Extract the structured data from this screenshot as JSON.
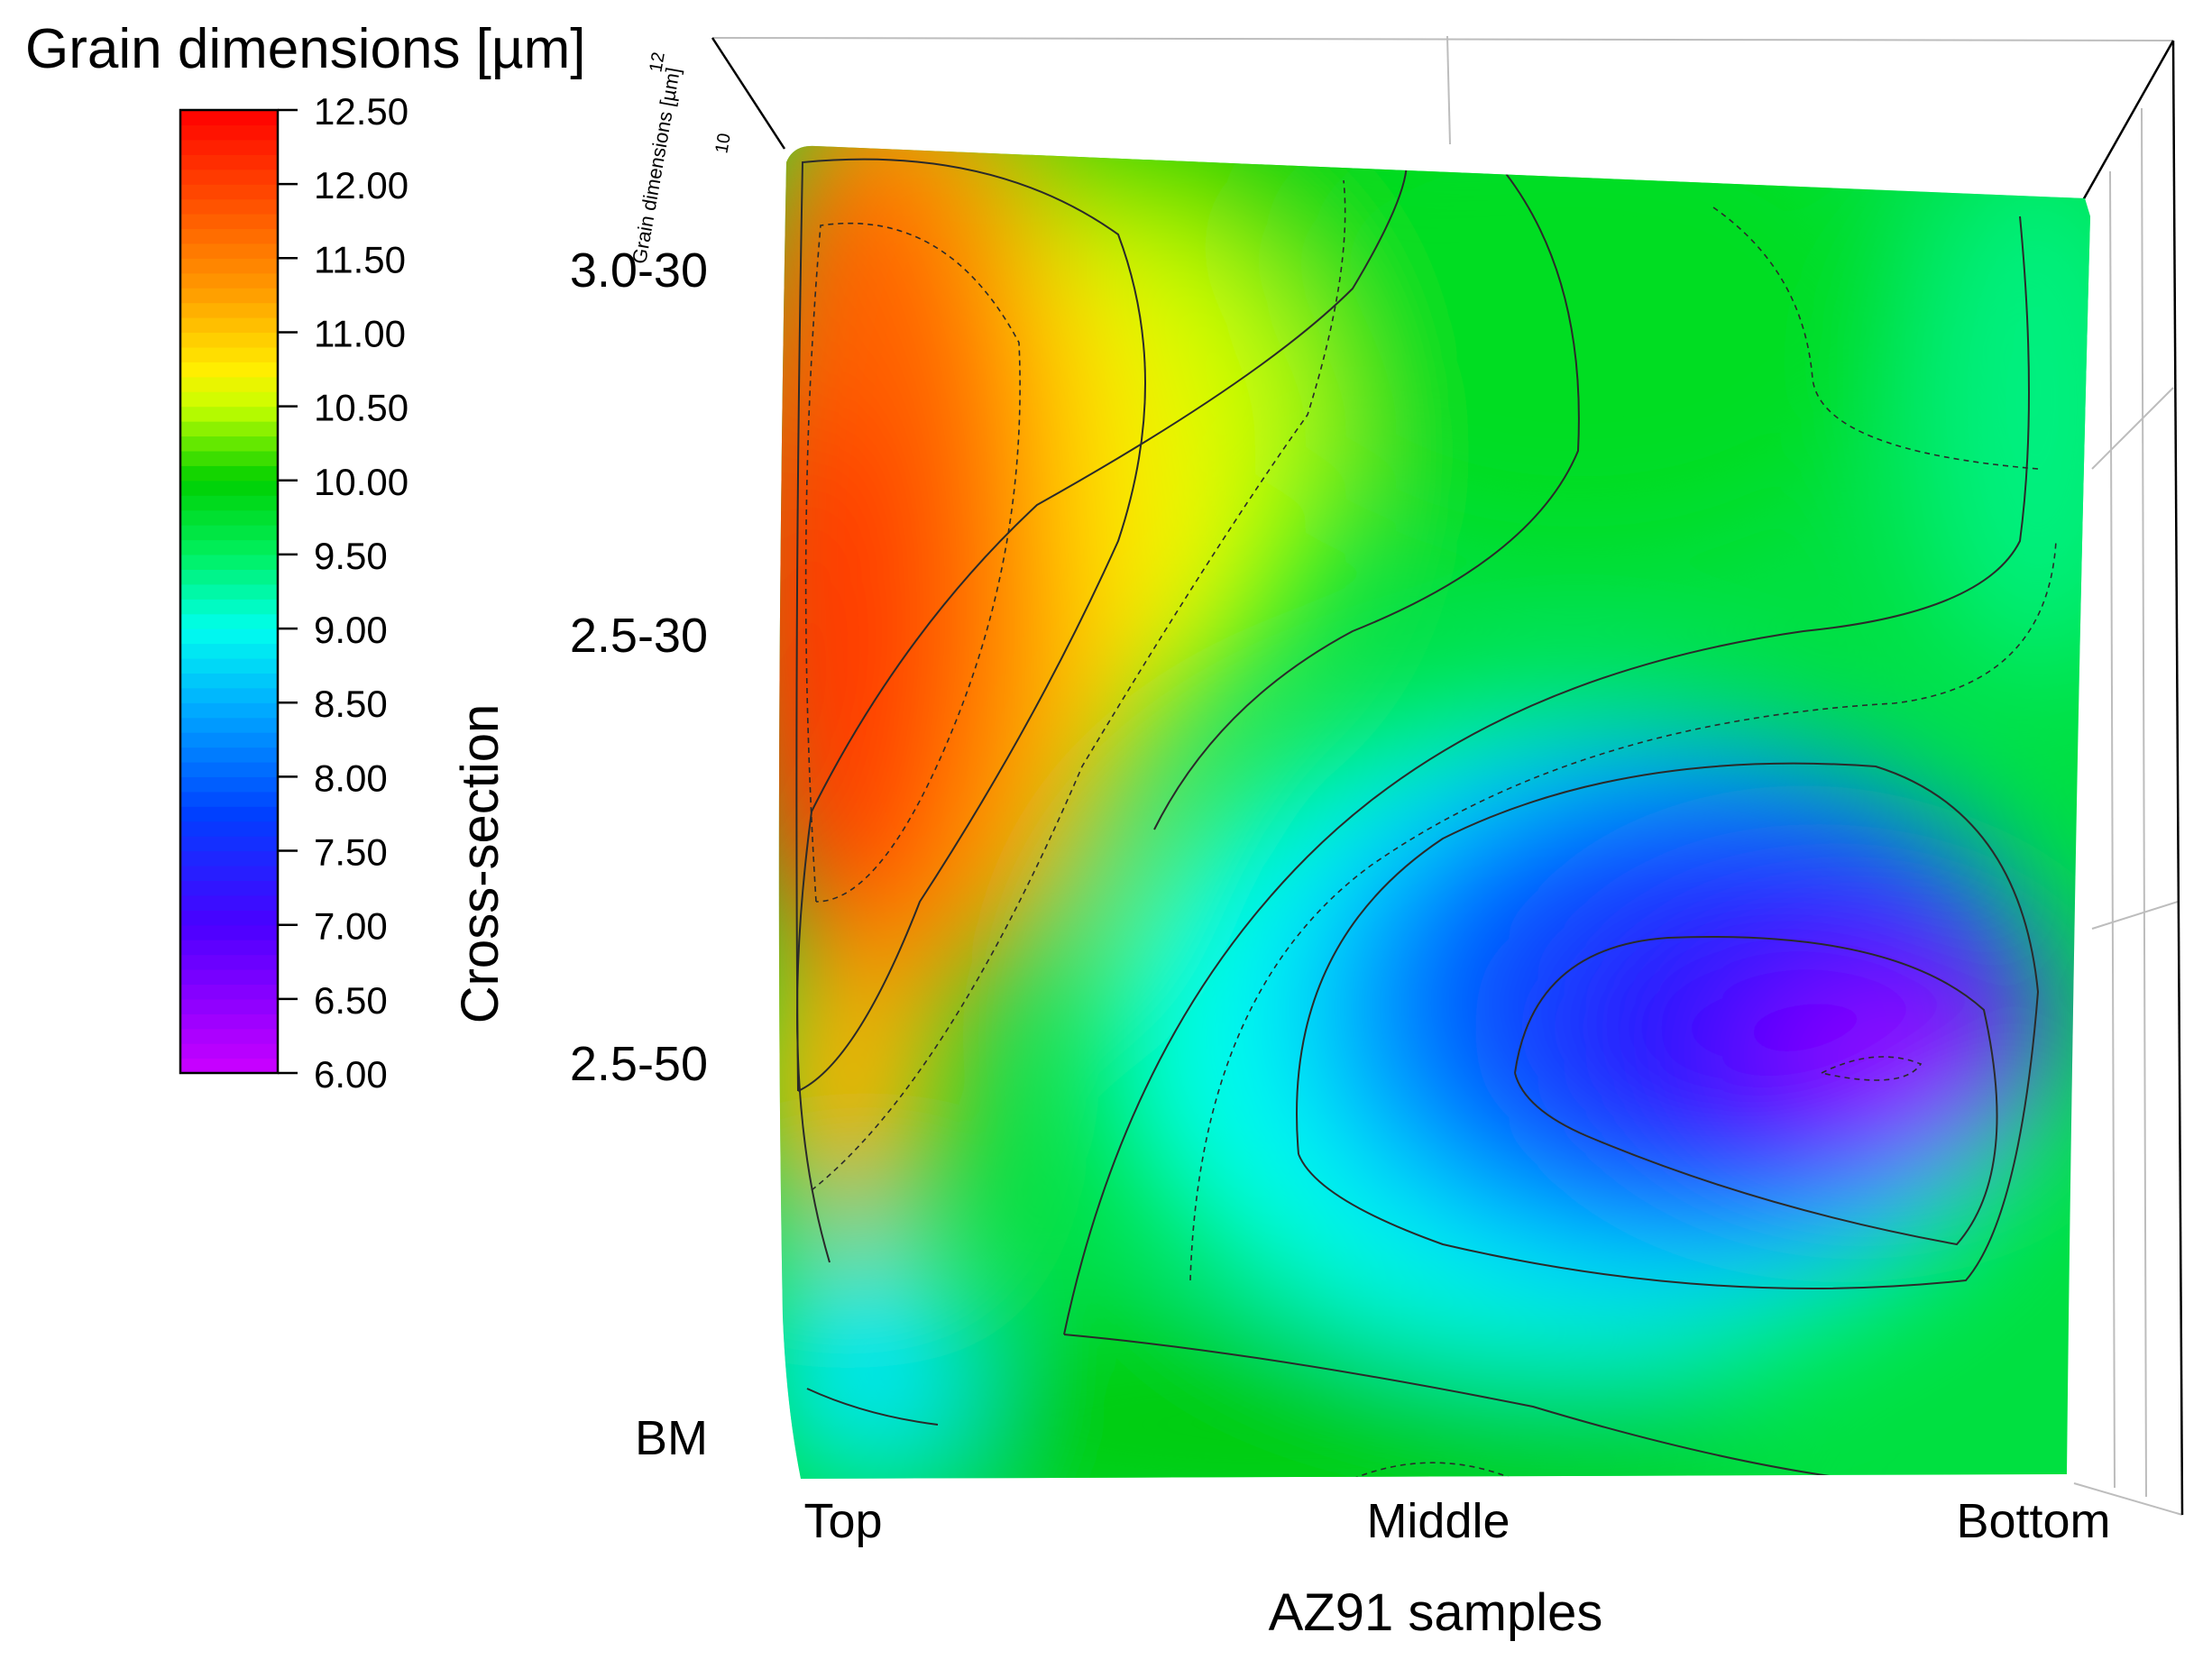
{
  "chart_data": {
    "type": "heatmap",
    "title": "Grain dimensions [µm]",
    "xlabel": "AZ91 samples",
    "ylabel": "Cross-section",
    "x_categories": [
      "Top",
      "Middle",
      "Bottom"
    ],
    "y_categories": [
      "3.0-30",
      "2.5-30",
      "2.5-50",
      "BM"
    ],
    "colorbar": {
      "min": 6.0,
      "max": 12.5,
      "ticks": [
        "12.50",
        "12.00",
        "11.50",
        "11.00",
        "10.50",
        "10.00",
        "9.50",
        "9.00",
        "8.50",
        "8.00",
        "7.50",
        "7.00",
        "6.50",
        "6.00"
      ],
      "stops": [
        {
          "value": 6.0,
          "color": "#cc00ff"
        },
        {
          "value": 7.0,
          "color": "#4a00ff"
        },
        {
          "value": 7.75,
          "color": "#0040ff"
        },
        {
          "value": 8.5,
          "color": "#00b0ff"
        },
        {
          "value": 9.0,
          "color": "#00ffee"
        },
        {
          "value": 9.5,
          "color": "#00f060"
        },
        {
          "value": 10.0,
          "color": "#00d000"
        },
        {
          "value": 10.5,
          "color": "#c8ff00"
        },
        {
          "value": 10.75,
          "color": "#ffee00"
        },
        {
          "value": 11.25,
          "color": "#ffa000"
        },
        {
          "value": 12.0,
          "color": "#ff4000"
        },
        {
          "value": 12.5,
          "color": "#ff0000"
        }
      ]
    },
    "z_axis_label": "Grain dimensions [µm]",
    "z_axis_ticks": [
      "12",
      "10"
    ],
    "contour_levels": [
      7.0,
      7.5,
      8.0,
      8.5,
      9.0,
      9.5,
      10.0,
      10.5,
      11.0,
      11.5,
      12.0
    ],
    "grid": true,
    "legend_position": "top-left"
  }
}
